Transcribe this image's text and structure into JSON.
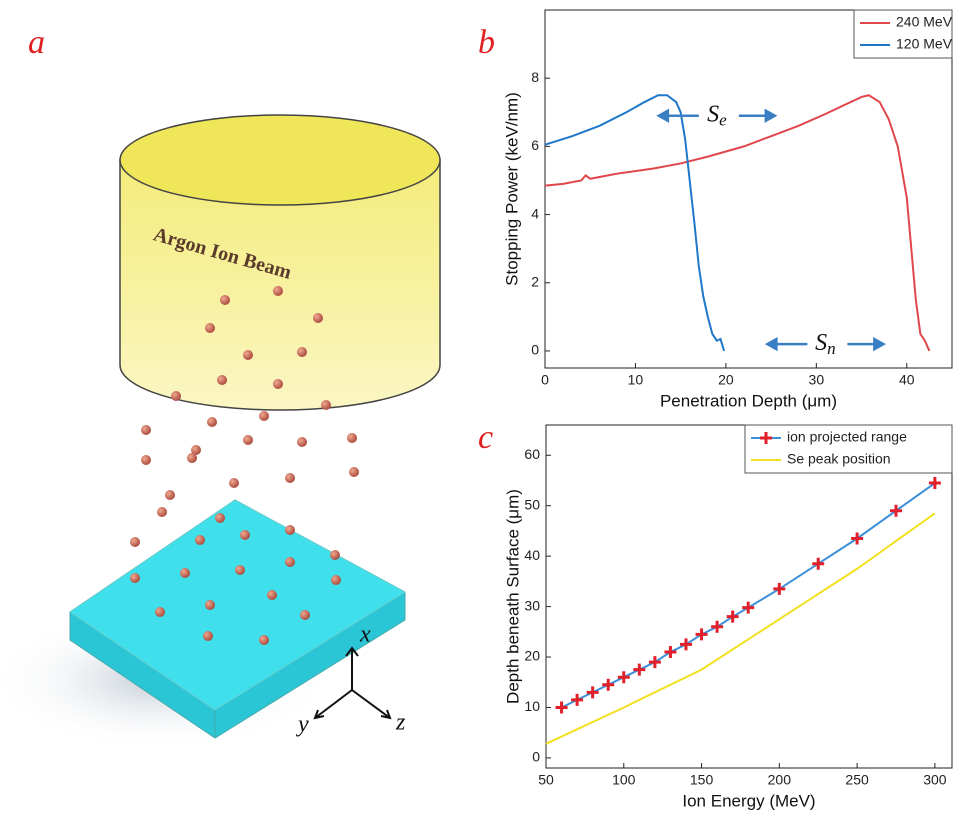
{
  "panels": {
    "a": "a",
    "b": "b",
    "c": "c"
  },
  "illustration": {
    "beam_label": "Argon Ion Beam",
    "axes": {
      "x": "x",
      "y": "y",
      "z": "z"
    }
  },
  "chart_data": [
    {
      "type": "line",
      "xlabel": "Penetration Depth (μm)",
      "ylabel": "Stopping Power (keV/nm)",
      "xlim": [
        0,
        45
      ],
      "ylim": [
        -0.5,
        10
      ],
      "xticks": [
        0,
        10,
        20,
        30,
        40
      ],
      "yticks": [
        0,
        2,
        4,
        6,
        8
      ],
      "legend": "upper right",
      "series": [
        {
          "name": "240 MeV",
          "color": "#e0474c",
          "x": [
            0,
            2,
            4,
            4.5,
            5,
            8,
            12,
            15,
            18,
            22,
            25,
            28,
            31,
            33,
            35,
            35.8,
            37,
            38,
            39,
            40,
            40.5,
            41,
            41.5,
            42,
            42.5
          ],
          "values": [
            4.85,
            4.9,
            5.0,
            5.15,
            5.05,
            5.2,
            5.35,
            5.5,
            5.7,
            6.0,
            6.3,
            6.6,
            6.95,
            7.2,
            7.45,
            7.5,
            7.3,
            6.8,
            6.0,
            4.5,
            3.0,
            1.5,
            0.5,
            0.3,
            0
          ]
        },
        {
          "name": "120 MeV",
          "color": "#1f77c9",
          "x": [
            0,
            3,
            6,
            9,
            11,
            12.5,
            13.5,
            14.5,
            15,
            15.5,
            16,
            16.5,
            17,
            17.5,
            18,
            18.5,
            19,
            19.4,
            19.8
          ],
          "values": [
            6.05,
            6.3,
            6.6,
            7.0,
            7.3,
            7.5,
            7.5,
            7.3,
            7.0,
            6.2,
            5.0,
            3.8,
            2.5,
            1.6,
            1.0,
            0.5,
            0.3,
            0.35,
            0
          ]
        }
      ],
      "annotations": [
        {
          "text": "S",
          "subscript": "e",
          "x": 19,
          "y": 6.9
        },
        {
          "text": "S",
          "subscript": "n",
          "x": 31,
          "y": 0.2
        }
      ]
    },
    {
      "type": "line",
      "xlabel": "Ion Energy (MeV)",
      "ylabel": "Depth beneath Surface (μm)",
      "xlim": [
        50,
        311
      ],
      "ylim": [
        -2,
        66
      ],
      "xticks": [
        50,
        100,
        150,
        200,
        250,
        300
      ],
      "yticks": [
        0,
        10,
        20,
        30,
        40,
        50,
        60
      ],
      "legend": "upper right",
      "series": [
        {
          "name": "ion projected range",
          "color": "#3b8fd9",
          "marker": "+",
          "marker_color": "#e0202a",
          "x": [
            60,
            70,
            80,
            90,
            100,
            110,
            120,
            130,
            140,
            150,
            160,
            170,
            180,
            200,
            225,
            250,
            275,
            300
          ],
          "values": [
            10,
            11.5,
            13,
            14.5,
            16,
            17.5,
            19,
            21,
            22.5,
            24.5,
            26,
            28,
            29.8,
            33.5,
            38.5,
            43.5,
            49,
            54.5
          ]
        },
        {
          "name": "Se peak position",
          "color": "#f2e020",
          "x": [
            50,
            100,
            150,
            200,
            250,
            300
          ],
          "values": [
            2.8,
            10,
            17.5,
            27.5,
            37.5,
            48.5
          ]
        }
      ]
    }
  ]
}
